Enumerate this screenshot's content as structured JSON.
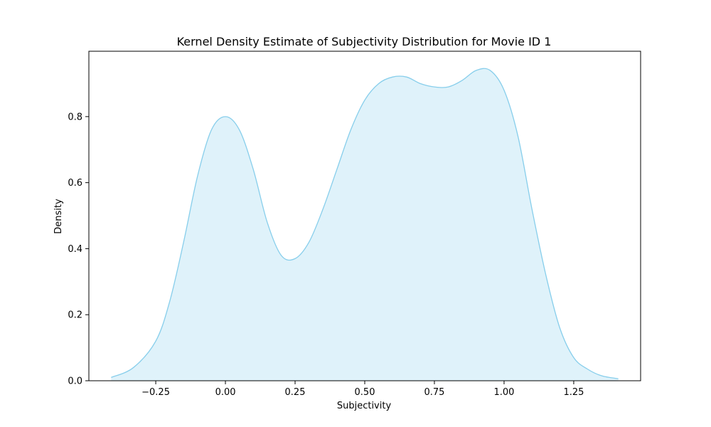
{
  "chart_data": {
    "type": "area",
    "title": "Kernel Density Estimate of Subjectivity Distribution for Movie ID 1",
    "xlabel": "Subjectivity",
    "ylabel": "Density",
    "xlim": [
      -0.49,
      1.49
    ],
    "ylim": [
      0,
      0.998
    ],
    "xticks": [
      -0.25,
      0.0,
      0.25,
      0.5,
      0.75,
      1.0,
      1.25
    ],
    "xtick_labels": [
      "−0.25",
      "0.00",
      "0.25",
      "0.50",
      "0.75",
      "1.00",
      "1.25"
    ],
    "yticks": [
      0.0,
      0.2,
      0.4,
      0.6,
      0.8
    ],
    "ytick_labels": [
      "0.0",
      "0.2",
      "0.4",
      "0.6",
      "0.8"
    ],
    "grid": false,
    "line_color": "#87ceeb",
    "fill_color": "#87ceeb",
    "fill_opacity": 0.27,
    "series": [
      {
        "x": [
          -0.41,
          -0.33,
          -0.25,
          -0.2,
          -0.15,
          -0.1,
          -0.05,
          0.0,
          0.05,
          0.1,
          0.15,
          0.2,
          0.25,
          0.3,
          0.35,
          0.4,
          0.45,
          0.5,
          0.55,
          0.6,
          0.65,
          0.7,
          0.75,
          0.8,
          0.85,
          0.9,
          0.95,
          1.0,
          1.05,
          1.1,
          1.15,
          1.2,
          1.25,
          1.3,
          1.35,
          1.41
        ],
        "y": [
          0.01,
          0.04,
          0.12,
          0.24,
          0.42,
          0.62,
          0.76,
          0.8,
          0.76,
          0.64,
          0.48,
          0.38,
          0.37,
          0.42,
          0.52,
          0.64,
          0.76,
          0.85,
          0.9,
          0.92,
          0.92,
          0.9,
          0.89,
          0.89,
          0.91,
          0.94,
          0.94,
          0.88,
          0.74,
          0.52,
          0.32,
          0.16,
          0.07,
          0.035,
          0.015,
          0.006
        ]
      }
    ]
  }
}
